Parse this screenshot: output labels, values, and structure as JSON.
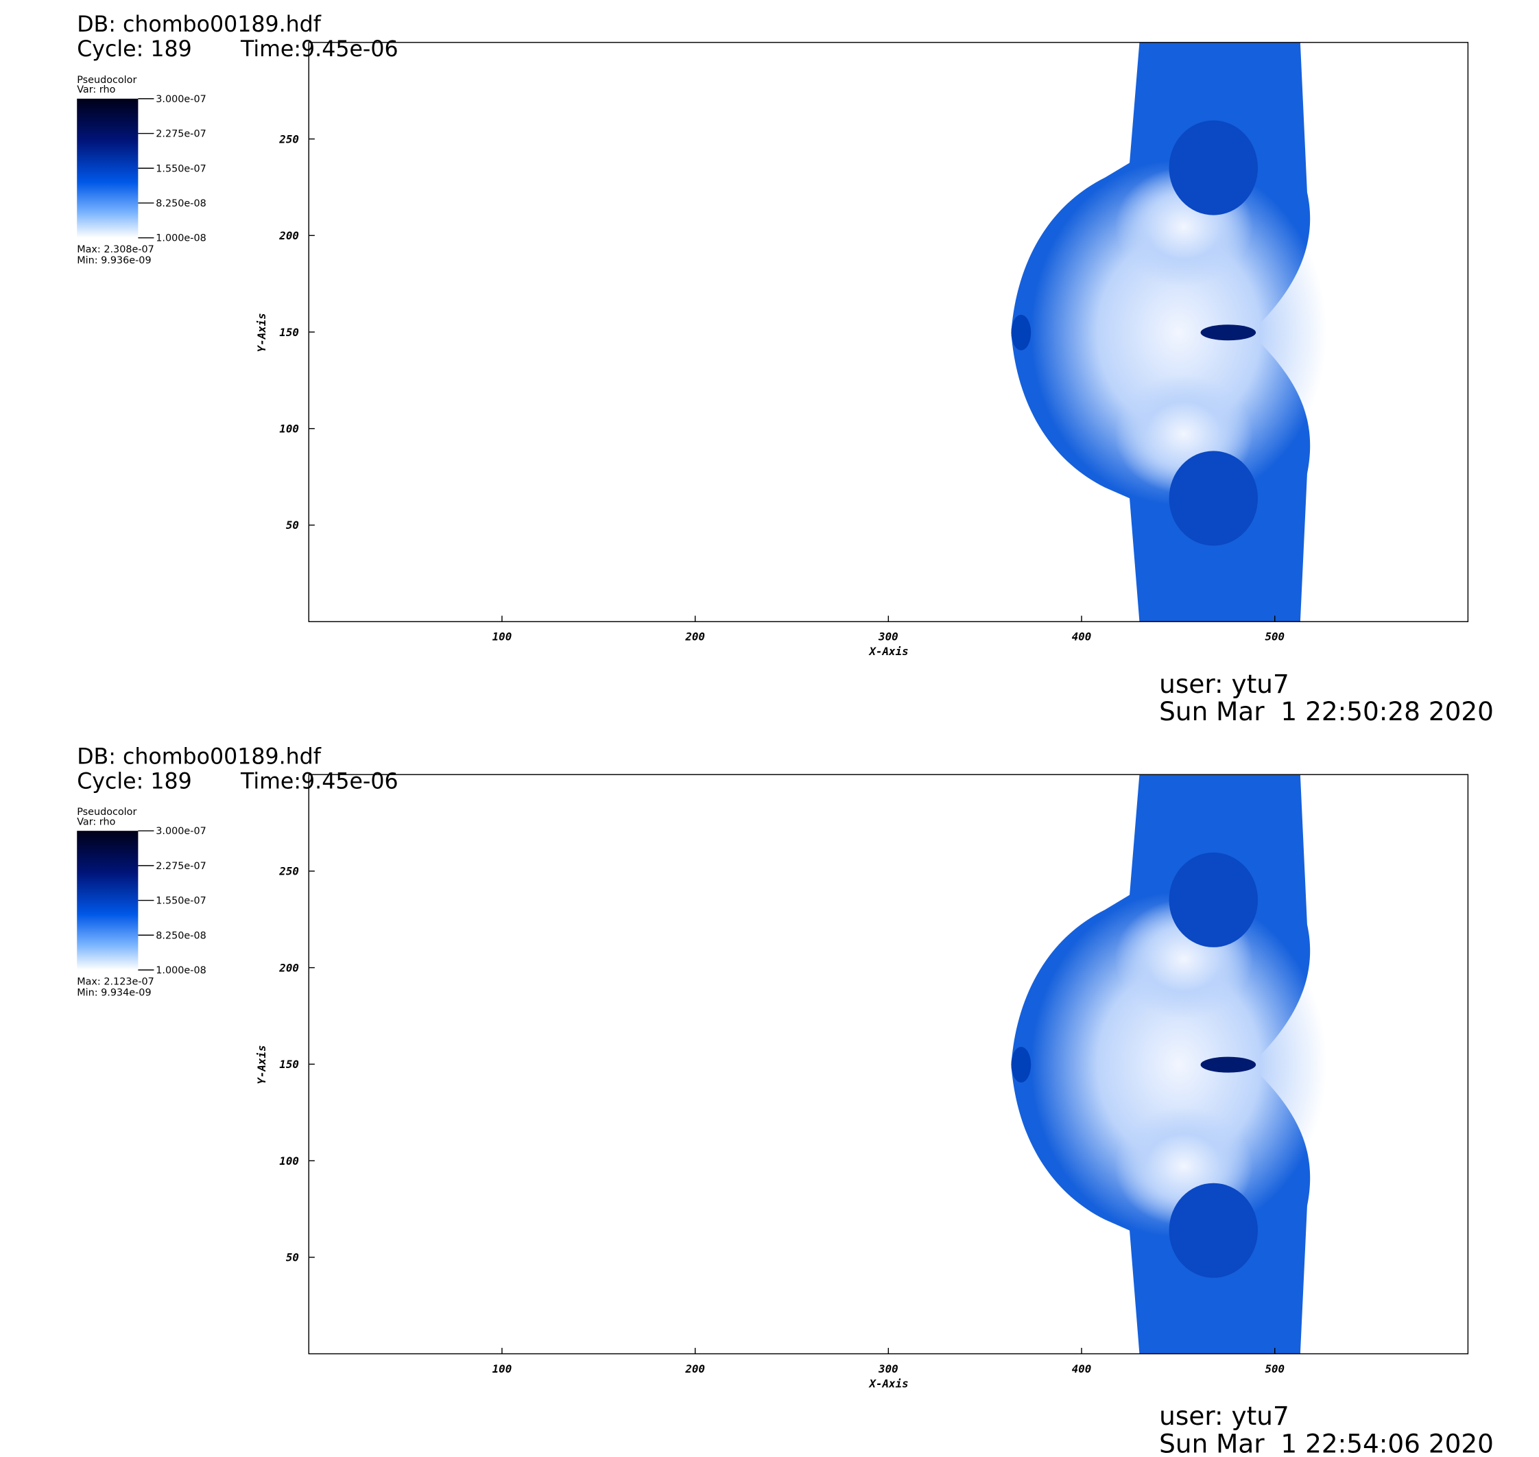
{
  "chart_data": [
    {
      "type": "pseudocolor",
      "db": "DB: chombo00189.hdf",
      "cycle": "Cycle: 189",
      "time": "Time:9.45e-06",
      "legend_title": "Pseudocolor",
      "variable": "Var: rho",
      "clim": [
        1e-08,
        3e-07
      ],
      "cticks": [
        {
          "value": 3e-07,
          "label": "3.000e-07"
        },
        {
          "value": 2.275e-07,
          "label": "2.275e-07"
        },
        {
          "value": 1.55e-07,
          "label": "1.550e-07"
        },
        {
          "value": 8.25e-08,
          "label": "8.250e-08"
        },
        {
          "value": 1e-08,
          "label": "1.000e-08"
        }
      ],
      "max": "Max: 2.308e-07",
      "min": "Min: 9.936e-09",
      "xlim": [
        0,
        600
      ],
      "ylim": [
        0,
        300
      ],
      "xticks": [
        100,
        200,
        300,
        400,
        500
      ],
      "yticks": [
        50,
        100,
        150,
        200,
        250
      ],
      "x_label": "X-Axis",
      "y_label": "Y-Axis",
      "user": "user: ytu7",
      "date": "Sun Mar  1 22:50:28 2020"
    },
    {
      "type": "pseudocolor",
      "db": "DB: chombo00189.hdf",
      "cycle": "Cycle: 189",
      "time": "Time:9.45e-06",
      "legend_title": "Pseudocolor",
      "variable": "Var: rho",
      "clim": [
        1e-08,
        3e-07
      ],
      "cticks": [
        {
          "value": 3e-07,
          "label": "3.000e-07"
        },
        {
          "value": 2.275e-07,
          "label": "2.275e-07"
        },
        {
          "value": 1.55e-07,
          "label": "1.550e-07"
        },
        {
          "value": 8.25e-08,
          "label": "8.250e-08"
        },
        {
          "value": 1e-08,
          "label": "1.000e-08"
        }
      ],
      "max": "Max: 2.123e-07",
      "min": "Min: 9.934e-09",
      "xlim": [
        0,
        600
      ],
      "ylim": [
        0,
        300
      ],
      "xticks": [
        100,
        200,
        300,
        400,
        500
      ],
      "yticks": [
        50,
        100,
        150,
        200,
        250
      ],
      "x_label": "X-Axis",
      "y_label": "Y-Axis",
      "user": "user: ytu7",
      "date": "Sun Mar  1 22:54:06 2020"
    }
  ]
}
